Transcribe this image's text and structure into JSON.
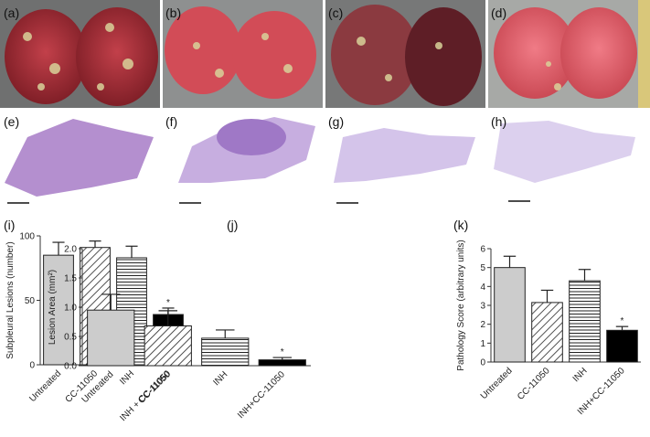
{
  "photo_labels": [
    "(a)",
    "(b)",
    "(c)",
    "(d)"
  ],
  "section_labels": [
    "(e)",
    "(f)",
    "(g)",
    "(h)"
  ],
  "chart_data": [
    {
      "type": "bar",
      "panel": "(i)",
      "y_label": "Subpleural Lesions (number)",
      "categories": [
        "Untreated",
        "CC-11050",
        "INH",
        "INH + CC-11050"
      ],
      "values": [
        85,
        91,
        83,
        39
      ],
      "errors": [
        10,
        5,
        9,
        5
      ],
      "patterns": [
        "solid",
        "diagonal",
        "horizontal",
        "solid"
      ],
      "colors": [
        "#cccccc",
        "#ffffff",
        "#ffffff",
        "#000000"
      ],
      "annotations": [
        {
          "text": "*",
          "category": "INH + CC-11050"
        }
      ],
      "ylim": [
        0,
        100
      ],
      "yticks": [
        0,
        50,
        100
      ]
    },
    {
      "type": "bar",
      "panel": "(j)",
      "y_label": "Lesion Area (mm²)",
      "categories": [
        "Untreated",
        "CC-11050",
        "INH",
        "INH+CC-11050"
      ],
      "values": [
        0.95,
        0.68,
        0.47,
        0.1
      ],
      "errors": [
        0.27,
        0.26,
        0.14,
        0.04
      ],
      "patterns": [
        "solid",
        "diagonal",
        "horizontal",
        "solid"
      ],
      "colors": [
        "#cccccc",
        "#ffffff",
        "#ffffff",
        "#000000"
      ],
      "annotations": [
        {
          "text": "*",
          "category": "INH+CC-11050"
        }
      ],
      "ylim": [
        0,
        2
      ],
      "yticks": [
        {
          "value": 0,
          "label": "0.0"
        },
        0.5,
        {
          "value": 1,
          "label": "1.0"
        },
        1.5,
        {
          "value": 2,
          "label": "2.0"
        }
      ]
    },
    {
      "type": "bar",
      "panel": "(k)",
      "y_label": "Pathology Score (arbitrary units)",
      "categories": [
        "Untreated",
        "CC-11050",
        "INH",
        "INH+CC-11050"
      ],
      "values": [
        5.0,
        3.15,
        4.3,
        1.68
      ],
      "errors": [
        0.6,
        0.65,
        0.6,
        0.2
      ],
      "patterns": [
        "solid",
        "diagonal",
        "horizontal",
        "solid"
      ],
      "colors": [
        "#cccccc",
        "#ffffff",
        "#ffffff",
        "#000000"
      ],
      "annotations": [
        {
          "text": "*",
          "category": "INH+CC-11050"
        }
      ],
      "ylim": [
        0,
        6
      ],
      "yticks": [
        0,
        1,
        2,
        3,
        4,
        5,
        6
      ]
    }
  ]
}
